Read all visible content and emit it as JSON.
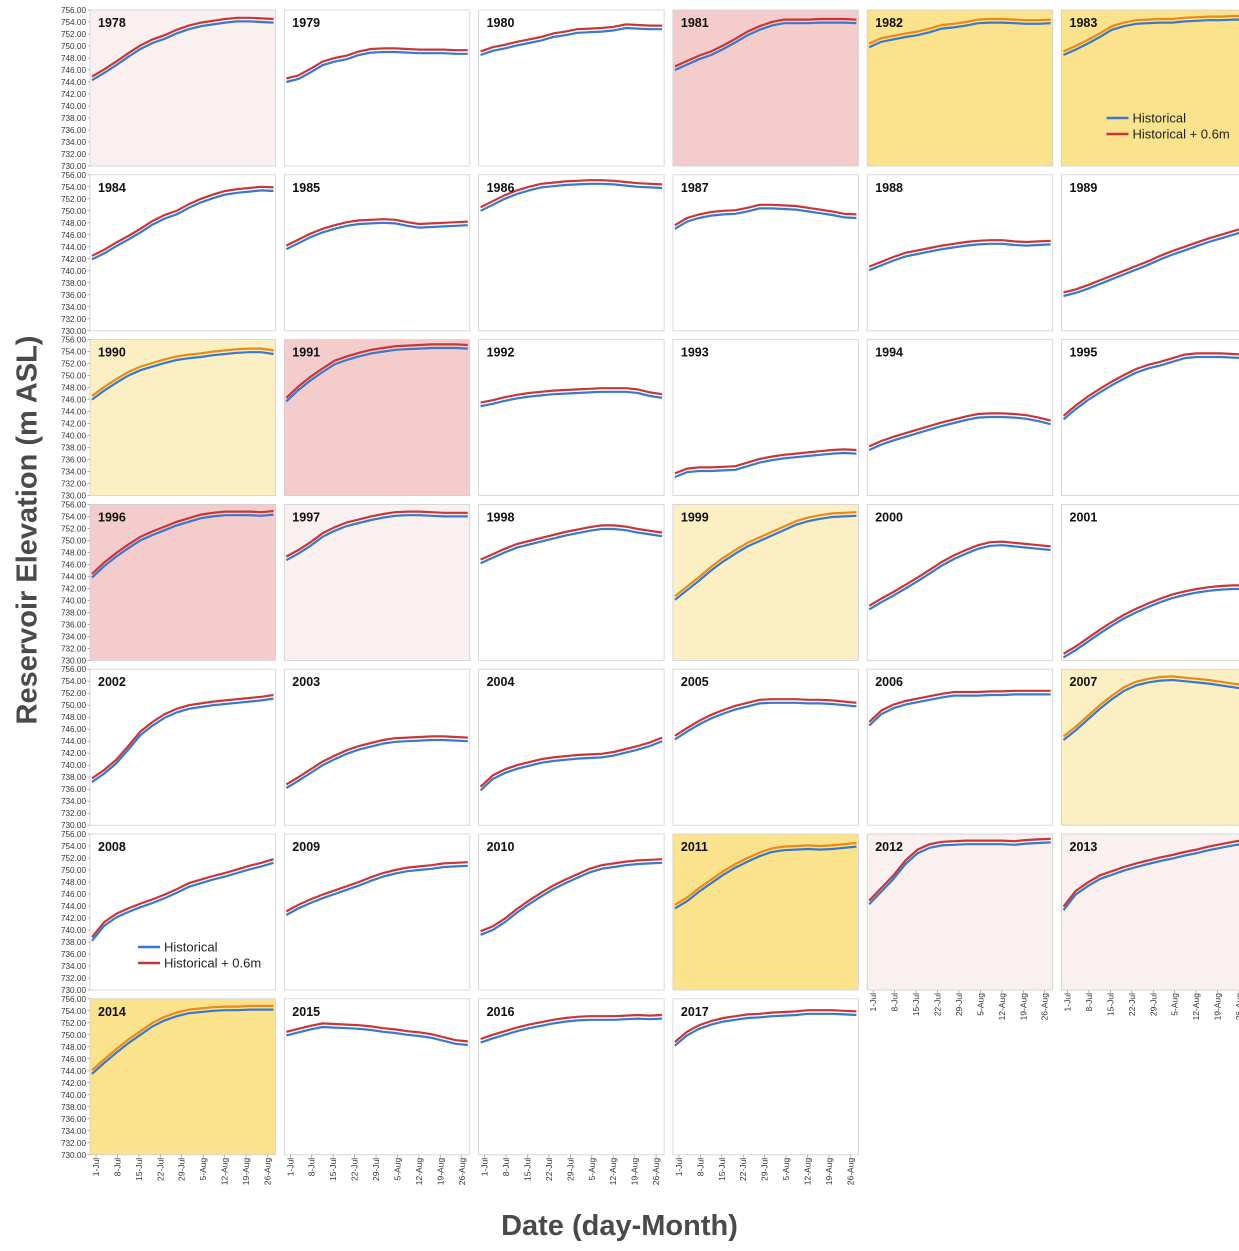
{
  "figure": {
    "ylabel": "Reservoir Elevation (m ASL)",
    "xlabel": "Date (day-Month)"
  },
  "colors": {
    "historical": "#3a78c9",
    "historical_plus": "#c8363a",
    "historical_plus_on_yellow": "#e88a1a",
    "shade_light_red": "#fbf0f0",
    "shade_red": "#f5cccc",
    "shade_light_yellow": "#fcefc4",
    "shade_yellow": "#fbe38e"
  },
  "chart_data": {
    "type": "line",
    "title": "",
    "xlabel": "Date (day-Month)",
    "ylabel": "Reservoir Elevation (m ASL)",
    "ylim": [
      730,
      756
    ],
    "ytick_labels": [
      "730.00",
      "732.00",
      "734.00",
      "736.00",
      "738.00",
      "740.00",
      "742.00",
      "744.00",
      "746.00",
      "748.00",
      "750.00",
      "752.00",
      "754.00",
      "756.00"
    ],
    "x_ticks": [
      "1-Jul",
      "8-Jul",
      "15-Jul",
      "22-Jul",
      "29-Jul",
      "5-Aug",
      "12-Aug",
      "19-Aug",
      "26-Aug"
    ],
    "series_names": [
      "Historical",
      "Historical + 0.6m"
    ],
    "offset_m": 0.6,
    "grid": false,
    "legends": [
      {
        "panel": "1983",
        "placement": "bottom-right"
      },
      {
        "panel": "2008",
        "placement": "bottom-center"
      }
    ],
    "panels": [
      {
        "year": "1978",
        "shade": "light-red",
        "historical": [
          744.3,
          745.5,
          746.8,
          748.2,
          749.5,
          750.5,
          751.2,
          752.1,
          752.8,
          753.3,
          753.6,
          753.9,
          754.1,
          754.1,
          754.0,
          753.9
        ]
      },
      {
        "year": "1979",
        "shade": "none",
        "historical": [
          744.0,
          744.5,
          745.6,
          746.8,
          747.4,
          747.8,
          748.5,
          748.9,
          749.0,
          749.0,
          748.9,
          748.8,
          748.8,
          748.8,
          748.7,
          748.7
        ]
      },
      {
        "year": "1980",
        "shade": "none",
        "historical": [
          748.5,
          749.2,
          749.6,
          750.1,
          750.5,
          750.9,
          751.5,
          751.8,
          752.2,
          752.3,
          752.4,
          752.6,
          753.0,
          752.9,
          752.8,
          752.8
        ]
      },
      {
        "year": "1981",
        "shade": "red",
        "historical": [
          746.0,
          746.9,
          747.8,
          748.5,
          749.5,
          750.6,
          751.8,
          752.7,
          753.4,
          753.8,
          753.8,
          753.8,
          753.9,
          753.9,
          753.9,
          753.8
        ]
      },
      {
        "year": "1982",
        "shade": "yellow",
        "historical": [
          749.8,
          750.7,
          751.1,
          751.5,
          751.8,
          752.3,
          752.9,
          753.1,
          753.4,
          753.8,
          753.9,
          753.9,
          753.8,
          753.7,
          753.7,
          753.8
        ]
      },
      {
        "year": "1983",
        "shade": "yellow",
        "historical": [
          748.5,
          749.4,
          750.4,
          751.5,
          752.7,
          753.3,
          753.7,
          753.8,
          753.9,
          753.9,
          754.1,
          754.2,
          754.3,
          754.3,
          754.4,
          754.4
        ]
      },
      {
        "year": "1984",
        "shade": "none",
        "historical": [
          741.9,
          742.9,
          744.1,
          745.2,
          746.4,
          747.7,
          748.7,
          749.4,
          750.5,
          751.4,
          752.1,
          752.7,
          753.0,
          753.2,
          753.4,
          753.3
        ]
      },
      {
        "year": "1985",
        "shade": "none",
        "historical": [
          743.6,
          744.6,
          745.6,
          746.4,
          747.0,
          747.5,
          747.8,
          747.9,
          748.0,
          747.9,
          747.5,
          747.2,
          747.3,
          747.4,
          747.5,
          747.6
        ]
      },
      {
        "year": "1986",
        "shade": "none",
        "historical": [
          750.0,
          751.0,
          752.0,
          752.8,
          753.4,
          753.9,
          754.1,
          754.3,
          754.4,
          754.5,
          754.5,
          754.4,
          754.2,
          754.0,
          753.9,
          753.8
        ]
      },
      {
        "year": "1987",
        "shade": "none",
        "historical": [
          747.0,
          748.2,
          748.8,
          749.2,
          749.4,
          749.5,
          749.9,
          750.4,
          750.4,
          750.3,
          750.2,
          749.9,
          749.6,
          749.3,
          748.9,
          748.8
        ]
      },
      {
        "year": "1988",
        "shade": "none",
        "historical": [
          740.1,
          740.9,
          741.7,
          742.4,
          742.8,
          743.2,
          743.6,
          743.9,
          744.2,
          744.4,
          744.5,
          744.5,
          744.3,
          744.2,
          744.3,
          744.4
        ]
      },
      {
        "year": "1989",
        "shade": "none",
        "historical": [
          735.8,
          736.3,
          737.0,
          737.8,
          738.6,
          739.4,
          740.2,
          741.0,
          741.9,
          742.7,
          743.4,
          744.1,
          744.8,
          745.4,
          746.0,
          746.6
        ]
      },
      {
        "year": "1990",
        "shade": "light-yellow",
        "historical": [
          746.0,
          747.5,
          748.8,
          750.0,
          750.9,
          751.5,
          752.1,
          752.6,
          752.9,
          753.1,
          753.4,
          753.6,
          753.8,
          753.9,
          753.9,
          753.6
        ]
      },
      {
        "year": "1991",
        "shade": "red",
        "historical": [
          745.7,
          747.6,
          749.2,
          750.6,
          751.9,
          752.6,
          753.2,
          753.7,
          754.0,
          754.3,
          754.4,
          754.5,
          754.6,
          754.6,
          754.6,
          754.5
        ]
      },
      {
        "year": "1992",
        "shade": "none",
        "historical": [
          744.9,
          745.3,
          745.8,
          746.2,
          746.5,
          746.7,
          746.9,
          747.0,
          747.1,
          747.2,
          747.3,
          747.3,
          747.3,
          747.1,
          746.6,
          746.3
        ]
      },
      {
        "year": "1993",
        "shade": "none",
        "historical": [
          733.1,
          733.9,
          734.1,
          734.1,
          734.2,
          734.3,
          734.9,
          735.5,
          735.9,
          736.2,
          736.4,
          736.6,
          736.8,
          737.0,
          737.1,
          737.0
        ]
      },
      {
        "year": "1994",
        "shade": "none",
        "historical": [
          737.6,
          738.5,
          739.2,
          739.8,
          740.4,
          741.0,
          741.6,
          742.1,
          742.6,
          743.0,
          743.1,
          743.1,
          743.0,
          742.8,
          742.4,
          741.9
        ]
      },
      {
        "year": "1995",
        "shade": "none",
        "historical": [
          742.7,
          744.4,
          745.9,
          747.2,
          748.4,
          749.5,
          750.5,
          751.2,
          751.7,
          752.3,
          752.9,
          753.1,
          753.1,
          753.1,
          753.0,
          752.9
        ]
      },
      {
        "year": "1996",
        "shade": "red",
        "historical": [
          743.8,
          745.7,
          747.3,
          748.7,
          750.0,
          750.9,
          751.7,
          752.5,
          753.1,
          753.7,
          754.0,
          754.2,
          754.2,
          754.2,
          754.1,
          754.3
        ]
      },
      {
        "year": "1997",
        "shade": "light-red",
        "historical": [
          746.7,
          747.8,
          749.1,
          750.6,
          751.6,
          752.4,
          752.9,
          753.4,
          753.8,
          754.1,
          754.2,
          754.2,
          754.1,
          754.0,
          754.0,
          754.0
        ]
      },
      {
        "year": "1998",
        "shade": "none",
        "historical": [
          746.2,
          747.1,
          748.0,
          748.8,
          749.3,
          749.8,
          750.3,
          750.8,
          751.2,
          751.6,
          751.9,
          751.9,
          751.7,
          751.3,
          751.0,
          750.7
        ]
      },
      {
        "year": "1999",
        "shade": "light-yellow",
        "historical": [
          740.1,
          741.7,
          743.3,
          745.0,
          746.5,
          747.8,
          749.0,
          749.9,
          750.8,
          751.7,
          752.6,
          753.2,
          753.6,
          753.9,
          754.0,
          754.1
        ]
      },
      {
        "year": "2000",
        "shade": "none",
        "historical": [
          738.5,
          739.7,
          740.8,
          742.0,
          743.2,
          744.5,
          745.8,
          746.9,
          747.8,
          748.6,
          749.1,
          749.2,
          749.0,
          748.8,
          748.6,
          748.4
        ]
      },
      {
        "year": "2001",
        "shade": "none",
        "historical": [
          730.5,
          731.7,
          733.1,
          734.5,
          735.8,
          737.0,
          738.0,
          738.9,
          739.7,
          740.4,
          740.9,
          741.3,
          741.6,
          741.8,
          741.9,
          741.9
        ]
      },
      {
        "year": "2002",
        "shade": "none",
        "historical": [
          737.2,
          738.6,
          740.3,
          742.6,
          745.0,
          746.6,
          747.9,
          748.8,
          749.4,
          749.7,
          750.0,
          750.2,
          750.4,
          750.6,
          750.8,
          751.1
        ]
      },
      {
        "year": "2003",
        "shade": "none",
        "historical": [
          736.2,
          737.4,
          738.7,
          740.0,
          741.0,
          741.9,
          742.6,
          743.1,
          743.6,
          743.9,
          744.0,
          744.1,
          744.2,
          744.2,
          744.1,
          744.0
        ]
      },
      {
        "year": "2004",
        "shade": "none",
        "historical": [
          735.8,
          737.7,
          738.7,
          739.4,
          739.9,
          740.4,
          740.7,
          740.9,
          741.1,
          741.2,
          741.3,
          741.6,
          742.1,
          742.6,
          743.2,
          744.0
        ]
      },
      {
        "year": "2005",
        "shade": "none",
        "historical": [
          744.3,
          745.6,
          746.8,
          747.8,
          748.6,
          749.3,
          749.8,
          750.3,
          750.4,
          750.4,
          750.4,
          750.3,
          750.3,
          750.2,
          750.0,
          749.8
        ]
      },
      {
        "year": "2006",
        "shade": "none",
        "historical": [
          746.6,
          748.5,
          749.5,
          750.1,
          750.5,
          750.9,
          751.3,
          751.6,
          751.6,
          751.6,
          751.7,
          751.7,
          751.8,
          751.8,
          751.8,
          751.8
        ]
      },
      {
        "year": "2007",
        "shade": "light-yellow",
        "historical": [
          744.2,
          745.8,
          747.6,
          749.4,
          751.0,
          752.4,
          753.3,
          753.8,
          754.1,
          754.2,
          754.0,
          753.8,
          753.6,
          753.3,
          753.0,
          752.7
        ]
      },
      {
        "year": "2008",
        "shade": "none",
        "historical": [
          738.2,
          740.7,
          742.1,
          743.0,
          743.8,
          744.5,
          745.3,
          746.2,
          747.2,
          747.8,
          748.4,
          748.9,
          749.5,
          750.1,
          750.6,
          751.2
        ]
      },
      {
        "year": "2009",
        "shade": "none",
        "historical": [
          742.5,
          743.6,
          744.5,
          745.3,
          746.0,
          746.7,
          747.4,
          748.2,
          748.9,
          749.4,
          749.8,
          750.0,
          750.2,
          750.5,
          750.6,
          750.7
        ]
      },
      {
        "year": "2010",
        "shade": "none",
        "historical": [
          739.2,
          740.0,
          741.3,
          742.9,
          744.3,
          745.6,
          746.8,
          747.8,
          748.7,
          749.6,
          750.2,
          750.5,
          750.8,
          751.0,
          751.1,
          751.2
        ]
      },
      {
        "year": "2011",
        "shade": "yellow",
        "historical": [
          743.6,
          744.8,
          746.4,
          747.8,
          749.2,
          750.4,
          751.4,
          752.3,
          753.0,
          753.3,
          753.4,
          753.5,
          753.4,
          753.5,
          753.7,
          753.9
        ]
      },
      {
        "year": "2012",
        "shade": "light-red",
        "historical": [
          744.3,
          746.4,
          748.5,
          751.0,
          752.8,
          753.7,
          754.1,
          754.2,
          754.3,
          754.3,
          754.3,
          754.3,
          754.2,
          754.4,
          754.5,
          754.6
        ]
      },
      {
        "year": "2013",
        "shade": "light-red",
        "historical": [
          743.3,
          745.9,
          747.3,
          748.5,
          749.2,
          749.9,
          750.5,
          751.0,
          751.5,
          751.9,
          752.4,
          752.8,
          753.3,
          753.7,
          754.1,
          754.4
        ]
      },
      {
        "year": "2014",
        "shade": "yellow",
        "historical": [
          743.5,
          745.3,
          747.0,
          748.6,
          750.0,
          751.4,
          752.4,
          753.1,
          753.6,
          753.8,
          754.0,
          754.1,
          754.1,
          754.2,
          754.2,
          754.2
        ]
      },
      {
        "year": "2015",
        "shade": "none",
        "historical": [
          749.9,
          750.4,
          750.9,
          751.3,
          751.2,
          751.1,
          751.0,
          750.8,
          750.5,
          750.3,
          750.0,
          749.8,
          749.5,
          749.0,
          748.5,
          748.3
        ]
      },
      {
        "year": "2016",
        "shade": "none",
        "historical": [
          748.7,
          749.4,
          750.0,
          750.6,
          751.1,
          751.5,
          751.9,
          752.2,
          752.4,
          752.5,
          752.5,
          752.5,
          752.6,
          752.7,
          752.6,
          752.7
        ]
      },
      {
        "year": "2017",
        "shade": "none",
        "historical": [
          748.2,
          749.9,
          751.0,
          751.7,
          752.2,
          752.5,
          752.8,
          752.9,
          753.1,
          753.2,
          753.3,
          753.5,
          753.5,
          753.5,
          753.4,
          753.3
        ]
      }
    ]
  }
}
